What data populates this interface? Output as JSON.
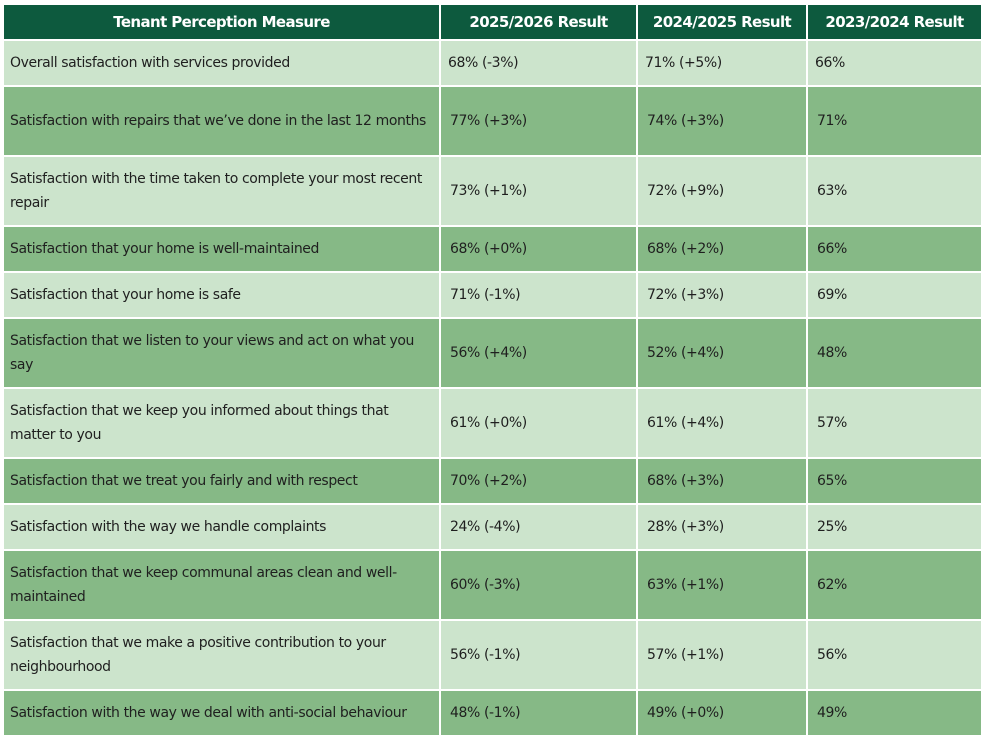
{
  "table": {
    "headers": [
      "Tenant Perception Measure",
      "2025/2026 Result",
      "2024/2025 Result",
      "2023/2024 Result"
    ],
    "rows": [
      {
        "measure": "Overall satisfaction with services provided",
        "r2025": "68% (-3%)",
        "r2024": "71% (+5%)",
        "r2023": "66%"
      },
      {
        "measure": "Satisfaction with repairs that we’ve done in the last 12 months",
        "r2025": "77% (+3%)",
        "r2024": "74% (+3%)",
        "r2023": "71%"
      },
      {
        "measure": "Satisfaction with the time taken to complete your most recent repair",
        "r2025": "73% (+1%)",
        "r2024": "72% (+9%)",
        "r2023": "63%"
      },
      {
        "measure": "Satisfaction that your home is well-maintained",
        "r2025": "68% (+0%)",
        "r2024": "68% (+2%)",
        "r2023": "66%"
      },
      {
        "measure": "Satisfaction that your home is safe",
        "r2025": "71% (-1%)",
        "r2024": "72% (+3%)",
        "r2023": "69%"
      },
      {
        "measure": "Satisfaction that we listen to your views and act on what you say",
        "r2025": "56% (+4%)",
        "r2024": "52% (+4%)",
        "r2023": "48%"
      },
      {
        "measure": "Satisfaction that we keep you informed about things that matter to you",
        "r2025": "61% (+0%)",
        "r2024": "61% (+4%)",
        "r2023": "57%"
      },
      {
        "measure": "Satisfaction that we treat you fairly and with respect",
        "r2025": "70% (+2%)",
        "r2024": "68% (+3%)",
        "r2023": "65%"
      },
      {
        "measure": "Satisfaction with the way we handle complaints",
        "r2025": "24% (-4%)",
        "r2024": "28% (+3%)",
        "r2023": "25%"
      },
      {
        "measure": "Satisfaction that we keep communal areas clean and well-maintained",
        "r2025": "60% (-3%)",
        "r2024": "63% (+1%)",
        "r2023": "62%"
      },
      {
        "measure": "Satisfaction that we make a positive contribution to your neighbourhood",
        "r2025": "56% (-1%)",
        "r2024": "57% (+1%)",
        "r2023": "56%"
      },
      {
        "measure": "Satisfaction with the way we deal with anti-social behaviour",
        "r2025": "48% (-1%)",
        "r2024": "49% (+0%)",
        "r2023": "49%"
      }
    ]
  },
  "colors": {
    "header": "#0d5a3e",
    "row_light": "#cce4cc",
    "row_dark": "#86b986"
  }
}
